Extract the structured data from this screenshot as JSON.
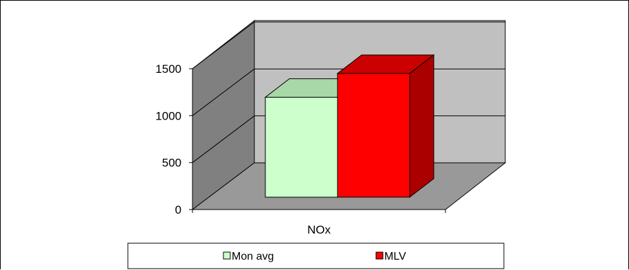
{
  "chart_data": {
    "type": "bar",
    "categories": [
      "NOx"
    ],
    "series": [
      {
        "name": "Mon avg",
        "values": [
          1050
        ],
        "color": "#ccffcc",
        "top_color": "#a8d8a8",
        "side_color": "#99cc99"
      },
      {
        "name": "MLV",
        "values": [
          1300
        ],
        "color": "#ff0000",
        "top_color": "#cc0000",
        "side_color": "#aa0000"
      }
    ],
    "ylim": [
      0,
      1500
    ],
    "yticks": [
      "0",
      "500",
      "1000",
      "1500"
    ],
    "ytick_values": [
      0,
      500,
      1000,
      1500
    ],
    "grid": true,
    "style": "3d",
    "legend_position": "bottom",
    "title": "",
    "xlabel": "",
    "ylabel": "",
    "colors": {
      "back_wall": "#c0c0c0",
      "side_wall": "#808080",
      "floor": "#999999"
    }
  }
}
